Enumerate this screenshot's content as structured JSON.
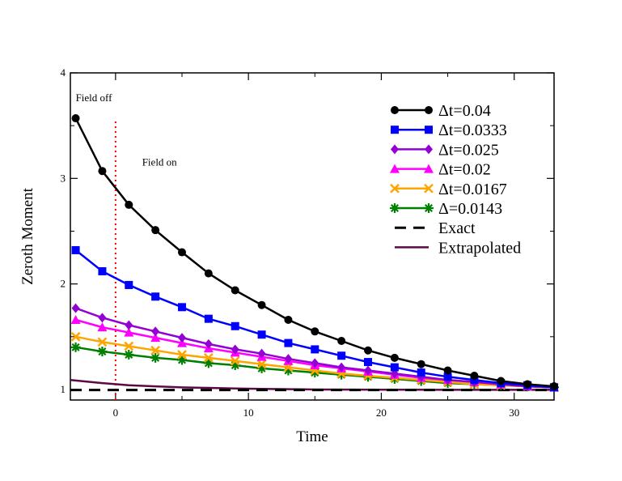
{
  "chart_data": {
    "type": "line",
    "title": "",
    "xlabel": "Time",
    "ylabel": "Zeroth Moment",
    "xlim": [
      -3.4,
      33
    ],
    "ylim": [
      0.9,
      4.0
    ],
    "xticks": [
      0,
      10,
      20,
      30
    ],
    "yticks": [
      1,
      2,
      3,
      4
    ],
    "x": [
      -3,
      -1,
      1,
      3,
      5,
      7,
      9,
      11,
      13,
      15,
      17,
      19,
      21,
      23,
      25,
      27,
      29,
      31,
      33
    ],
    "series": [
      {
        "name": "Δt=0.04",
        "color": "#000000",
        "marker": "circle",
        "values": [
          3.57,
          3.07,
          2.75,
          2.51,
          2.3,
          2.1,
          1.94,
          1.8,
          1.66,
          1.55,
          1.46,
          1.37,
          1.3,
          1.24,
          1.18,
          1.13,
          1.08,
          1.05,
          1.03
        ]
      },
      {
        "name": "Δt=0.0333",
        "color": "#0000ff",
        "marker": "square",
        "values": [
          2.32,
          2.12,
          1.99,
          1.88,
          1.78,
          1.67,
          1.6,
          1.52,
          1.44,
          1.38,
          1.32,
          1.26,
          1.21,
          1.16,
          1.12,
          1.09,
          1.06,
          1.04,
          1.02
        ]
      },
      {
        "name": "Δt=0.025",
        "color": "#9400d3",
        "marker": "diamond",
        "values": [
          1.77,
          1.68,
          1.61,
          1.55,
          1.49,
          1.43,
          1.38,
          1.34,
          1.29,
          1.25,
          1.21,
          1.18,
          1.15,
          1.12,
          1.09,
          1.07,
          1.05,
          1.03,
          1.02
        ]
      },
      {
        "name": "Δt=0.02",
        "color": "#ff00ff",
        "marker": "triangle",
        "values": [
          1.66,
          1.59,
          1.54,
          1.49,
          1.44,
          1.39,
          1.35,
          1.31,
          1.27,
          1.23,
          1.2,
          1.17,
          1.14,
          1.11,
          1.09,
          1.07,
          1.05,
          1.03,
          1.02
        ]
      },
      {
        "name": "Δt=0.0167",
        "color": "#ffa500",
        "marker": "x",
        "values": [
          1.5,
          1.45,
          1.41,
          1.37,
          1.33,
          1.3,
          1.27,
          1.24,
          1.21,
          1.18,
          1.15,
          1.13,
          1.11,
          1.09,
          1.07,
          1.05,
          1.04,
          1.03,
          1.02
        ]
      },
      {
        "name": "Δ=0.0143",
        "color": "#008000",
        "marker": "star",
        "values": [
          1.4,
          1.36,
          1.33,
          1.3,
          1.28,
          1.25,
          1.23,
          1.2,
          1.18,
          1.16,
          1.14,
          1.12,
          1.1,
          1.08,
          1.06,
          1.05,
          1.04,
          1.03,
          1.02
        ]
      },
      {
        "name": "Exact",
        "color": "#000000",
        "dashed": true,
        "x": [
          -3.4,
          33
        ],
        "values": [
          0.995,
          0.995
        ]
      },
      {
        "name": "Extrapolated",
        "color": "#5c0a47",
        "x": [
          -3.4,
          -1,
          1,
          3,
          5,
          7,
          9,
          11,
          15,
          20,
          25,
          30,
          33
        ],
        "values": [
          1.09,
          1.06,
          1.04,
          1.03,
          1.02,
          1.015,
          1.01,
          1.005,
          1.0,
          0.998,
          0.997,
          0.997,
          0.997
        ]
      }
    ],
    "vline": {
      "x": 0,
      "color": "#ff0000",
      "style": "dotted"
    },
    "annotations": [
      {
        "text": "Field off",
        "x": -3.0,
        "y": 3.73
      },
      {
        "text": "Field on",
        "x": 2.0,
        "y": 3.12
      }
    ],
    "legend": "top-right"
  }
}
